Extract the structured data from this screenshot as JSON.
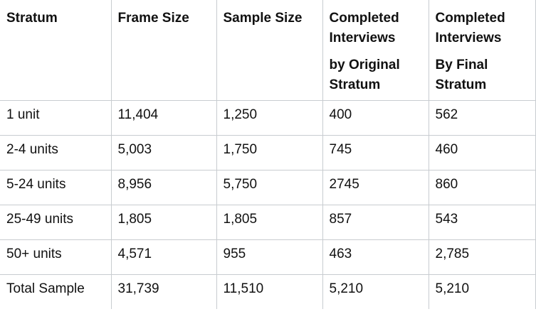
{
  "table": {
    "headers": [
      {
        "lines": [
          "Stratum"
        ]
      },
      {
        "lines": [
          "Frame Size"
        ]
      },
      {
        "lines": [
          "Sample Size"
        ]
      },
      {
        "lines": [
          "Completed",
          "Interviews"
        ],
        "lines2": [
          "by Original",
          "Stratum"
        ]
      },
      {
        "lines": [
          "Completed",
          "Interviews"
        ],
        "lines2": [
          "By Final",
          "Stratum"
        ]
      }
    ],
    "rows": [
      [
        "1 unit",
        "11,404",
        "1,250",
        "400",
        "562"
      ],
      [
        "2-4 units",
        "5,003",
        "1,750",
        "745",
        "460"
      ],
      [
        "5-24 units",
        "8,956",
        "5,750",
        "2745",
        "860"
      ],
      [
        "25-49 units",
        "1,805",
        "1,805",
        "857",
        "543"
      ],
      [
        "50+ units",
        "4,571",
        "955",
        "463",
        "2,785"
      ],
      [
        "Total Sample",
        "31,739",
        "11,510",
        "5,210",
        "5,210"
      ]
    ]
  }
}
